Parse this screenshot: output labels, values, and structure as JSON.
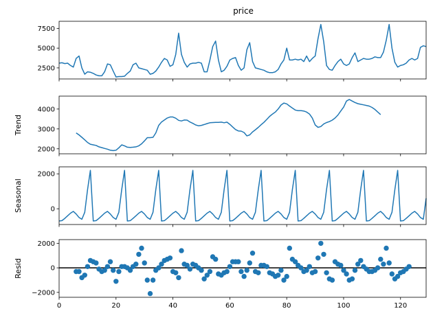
{
  "chart_data": {
    "type": "line",
    "title": "price",
    "series_color": "#1f77b4",
    "zero_line_color": "#000000",
    "x": {
      "range": [
        0,
        129
      ],
      "ticks": [
        0,
        20,
        40,
        60,
        80,
        100,
        120
      ],
      "tick_labels": [
        "0",
        "20",
        "40",
        "60",
        "80",
        "100",
        "120"
      ]
    },
    "panels": [
      {
        "name": "price",
        "ylabel": "",
        "kind": "line",
        "ylim": [
          1100,
          8400
        ],
        "yticks": [
          2500,
          5000,
          7500
        ],
        "ytick_labels": [
          "2500",
          "5000",
          "7500"
        ],
        "values": [
          3100,
          3150,
          3050,
          3100,
          2800,
          2600,
          3700,
          4000,
          2500,
          1700,
          2000,
          1950,
          1800,
          1600,
          1500,
          1500,
          2000,
          3000,
          2900,
          2100,
          1350,
          1400,
          1400,
          1450,
          1800,
          2100,
          2900,
          3100,
          2500,
          2400,
          2300,
          2200,
          1700,
          1800,
          2100,
          2600,
          3200,
          3700,
          3500,
          2700,
          2900,
          4200,
          6900,
          4200,
          3200,
          2600,
          3000,
          3100,
          3100,
          3200,
          3100,
          2000,
          2000,
          3500,
          5200,
          5900,
          3500,
          2000,
          2200,
          2700,
          3500,
          3700,
          3800,
          2800,
          2200,
          2500,
          4800,
          5700,
          3300,
          2500,
          2400,
          2300,
          2200,
          2000,
          1900,
          1900,
          2000,
          2300,
          3000,
          3500,
          5000,
          3500,
          3500,
          3600,
          3500,
          3600,
          3300,
          4000,
          3300,
          3700,
          4000,
          6200,
          8000,
          5800,
          2800,
          2300,
          2200,
          2800,
          3300,
          3600,
          3000,
          2800,
          3000,
          3800,
          4400,
          3300,
          3500,
          3700,
          3600,
          3600,
          3700,
          3900,
          3800,
          3800,
          4500,
          6000,
          8000,
          5000,
          3200,
          2600,
          2800,
          2900,
          3100,
          3500,
          3700,
          3500,
          3700,
          5100,
          5300,
          5200
        ]
      },
      {
        "name": "trend",
        "ylabel": "Trend",
        "kind": "line",
        "ylim": [
          1750,
          4650
        ],
        "yticks": [
          2000,
          3000,
          4000
        ],
        "ytick_labels": [
          "2000",
          "3000",
          "4000"
        ],
        "x_start": 6,
        "values": [
          2800,
          2700,
          2580,
          2450,
          2320,
          2230,
          2200,
          2170,
          2100,
          2060,
          2020,
          1980,
          1930,
          1910,
          1930,
          2050,
          2200,
          2150,
          2080,
          2070,
          2080,
          2100,
          2150,
          2250,
          2400,
          2560,
          2560,
          2580,
          2800,
          3180,
          3350,
          3450,
          3550,
          3600,
          3600,
          3540,
          3430,
          3400,
          3450,
          3440,
          3350,
          3280,
          3200,
          3160,
          3180,
          3220,
          3270,
          3310,
          3320,
          3330,
          3330,
          3340,
          3310,
          3340,
          3230,
          3100,
          2970,
          2900,
          2890,
          2820,
          2650,
          2700,
          2850,
          2960,
          3080,
          3210,
          3330,
          3480,
          3630,
          3750,
          3850,
          4000,
          4200,
          4300,
          4260,
          4150,
          4050,
          3950,
          3920,
          3920,
          3900,
          3850,
          3750,
          3550,
          3200,
          3080,
          3120,
          3250,
          3320,
          3370,
          3440,
          3550,
          3700,
          3900,
          4100,
          4400,
          4480,
          4400,
          4330,
          4270,
          4240,
          4210,
          4180,
          4150,
          4080,
          3980,
          3850,
          3720
        ]
      },
      {
        "name": "seasonal",
        "ylabel": "Seasonal",
        "kind": "line",
        "ylim": [
          -900,
          2400
        ],
        "yticks": [
          0,
          2000
        ],
        "ytick_labels": [
          "0",
          "2000"
        ],
        "pattern": [
          -700,
          -680,
          -550,
          -400,
          -250,
          -150,
          -300,
          -500,
          -600,
          -200,
          1100,
          2200
        ],
        "pattern_end_value": 600
      },
      {
        "name": "resid",
        "ylabel": "Resid",
        "kind": "scatter",
        "ylim": [
          -2400,
          2300
        ],
        "yticks": [
          -2000,
          0,
          2000
        ],
        "ytick_labels": [
          "−2000",
          "0",
          "2000"
        ],
        "zero_line": true,
        "points": [
          [
            6,
            -300
          ],
          [
            7,
            -300
          ],
          [
            8,
            -800
          ],
          [
            9,
            -600
          ],
          [
            10,
            100
          ],
          [
            11,
            600
          ],
          [
            12,
            500
          ],
          [
            13,
            400
          ],
          [
            14,
            -100
          ],
          [
            15,
            -300
          ],
          [
            16,
            -200
          ],
          [
            17,
            100
          ],
          [
            18,
            500
          ],
          [
            19,
            -200
          ],
          [
            20,
            -1100
          ],
          [
            21,
            -300
          ],
          [
            22,
            100
          ],
          [
            23,
            100
          ],
          [
            24,
            0
          ],
          [
            25,
            -200
          ],
          [
            26,
            100
          ],
          [
            27,
            300
          ],
          [
            28,
            1100
          ],
          [
            29,
            1600
          ],
          [
            30,
            400
          ],
          [
            31,
            -1000
          ],
          [
            32,
            -2100
          ],
          [
            33,
            -1000
          ],
          [
            34,
            -200
          ],
          [
            35,
            0
          ],
          [
            36,
            300
          ],
          [
            37,
            600
          ],
          [
            38,
            700
          ],
          [
            39,
            800
          ],
          [
            40,
            -300
          ],
          [
            41,
            -400
          ],
          [
            42,
            -800
          ],
          [
            43,
            1400
          ],
          [
            44,
            300
          ],
          [
            45,
            200
          ],
          [
            46,
            -100
          ],
          [
            47,
            300
          ],
          [
            48,
            200
          ],
          [
            49,
            0
          ],
          [
            50,
            -200
          ],
          [
            51,
            -900
          ],
          [
            52,
            -600
          ],
          [
            53,
            -300
          ],
          [
            54,
            900
          ],
          [
            55,
            700
          ],
          [
            56,
            -500
          ],
          [
            57,
            -600
          ],
          [
            58,
            -400
          ],
          [
            59,
            -300
          ],
          [
            60,
            100
          ],
          [
            61,
            500
          ],
          [
            62,
            500
          ],
          [
            63,
            500
          ],
          [
            64,
            -300
          ],
          [
            65,
            -700
          ],
          [
            66,
            -200
          ],
          [
            67,
            400
          ],
          [
            68,
            1200
          ],
          [
            69,
            -300
          ],
          [
            70,
            -400
          ],
          [
            71,
            200
          ],
          [
            72,
            200
          ],
          [
            73,
            100
          ],
          [
            74,
            -400
          ],
          [
            75,
            -500
          ],
          [
            76,
            -700
          ],
          [
            77,
            -600
          ],
          [
            78,
            -200
          ],
          [
            79,
            -1000
          ],
          [
            80,
            -700
          ],
          [
            81,
            1600
          ],
          [
            82,
            700
          ],
          [
            83,
            500
          ],
          [
            84,
            200
          ],
          [
            85,
            0
          ],
          [
            86,
            -300
          ],
          [
            87,
            -200
          ],
          [
            88,
            100
          ],
          [
            89,
            -400
          ],
          [
            90,
            -300
          ],
          [
            91,
            800
          ],
          [
            92,
            2000
          ],
          [
            93,
            1100
          ],
          [
            94,
            -400
          ],
          [
            95,
            -900
          ],
          [
            96,
            -1000
          ],
          [
            97,
            500
          ],
          [
            98,
            300
          ],
          [
            99,
            200
          ],
          [
            100,
            -200
          ],
          [
            101,
            -500
          ],
          [
            102,
            -1000
          ],
          [
            103,
            -900
          ],
          [
            104,
            -200
          ],
          [
            105,
            300
          ],
          [
            106,
            600
          ],
          [
            107,
            100
          ],
          [
            108,
            -100
          ],
          [
            109,
            -300
          ],
          [
            110,
            -300
          ],
          [
            111,
            -200
          ],
          [
            112,
            0
          ],
          [
            113,
            700
          ],
          [
            114,
            300
          ],
          [
            115,
            1600
          ],
          [
            116,
            400
          ],
          [
            117,
            -500
          ],
          [
            118,
            -900
          ],
          [
            119,
            -700
          ],
          [
            120,
            -400
          ],
          [
            121,
            -300
          ],
          [
            122,
            -100
          ],
          [
            123,
            100
          ]
        ]
      }
    ]
  }
}
